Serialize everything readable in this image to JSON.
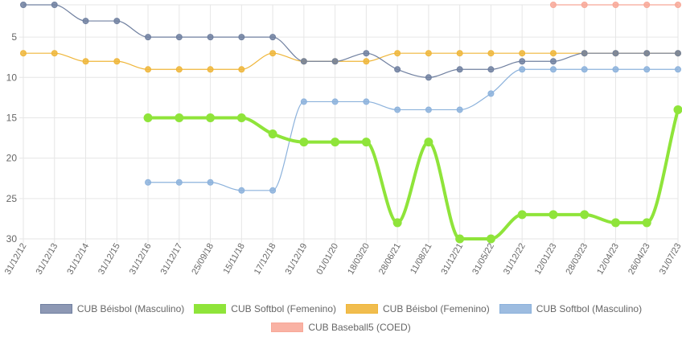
{
  "chart_data": {
    "type": "line",
    "categories": [
      "31/12/12",
      "31/12/13",
      "31/12/14",
      "31/12/15",
      "31/12/16",
      "31/12/17",
      "25/09/18",
      "15/11/18",
      "17/12/18",
      "31/12/19",
      "01/01/20",
      "18/03/20",
      "28/06/21",
      "11/08/21",
      "31/12/21",
      "31/05/22",
      "31/12/22",
      "12/01/23",
      "28/03/23",
      "12/04/23",
      "26/04/23",
      "31/07/23"
    ],
    "y_axis": {
      "reversed": true,
      "min": 1,
      "max": 30,
      "ticks": [
        5,
        10,
        15,
        20,
        25,
        30
      ]
    },
    "grid": true,
    "legend_position": "bottom",
    "series": [
      {
        "name": "CUB Béisbol (Masculino)",
        "color": "#7080a0",
        "values": [
          1,
          1,
          3,
          3,
          5,
          5,
          5,
          5,
          5,
          8,
          8,
          7,
          9,
          10,
          9,
          9,
          8,
          8,
          7,
          7,
          7,
          7
        ]
      },
      {
        "name": "CUB Softbol (Femenino)",
        "color": "#8fe43a",
        "values": [
          null,
          null,
          null,
          null,
          15,
          15,
          15,
          15,
          17,
          18,
          18,
          18,
          28,
          18,
          30,
          30,
          27,
          27,
          27,
          28,
          28,
          14
        ]
      },
      {
        "name": "CUB Béisbol (Femenino)",
        "color": "#efb63a",
        "values": [
          7,
          7,
          8,
          8,
          9,
          9,
          9,
          9,
          7,
          8,
          8,
          8,
          7,
          7,
          7,
          7,
          7,
          7,
          7,
          7,
          7,
          7
        ]
      },
      {
        "name": "CUB Softbol (Masculino)",
        "color": "#8cb2dc",
        "values": [
          null,
          null,
          null,
          null,
          23,
          23,
          23,
          24,
          24,
          13,
          13,
          13,
          14,
          14,
          14,
          12,
          9,
          9,
          9,
          9,
          9,
          9
        ]
      },
      {
        "name": "CUB Baseball5 (COED)",
        "color": "#f8a898",
        "values": [
          null,
          null,
          null,
          null,
          null,
          null,
          null,
          null,
          null,
          null,
          null,
          null,
          null,
          null,
          null,
          null,
          null,
          1,
          1,
          1,
          1,
          1
        ]
      }
    ]
  }
}
